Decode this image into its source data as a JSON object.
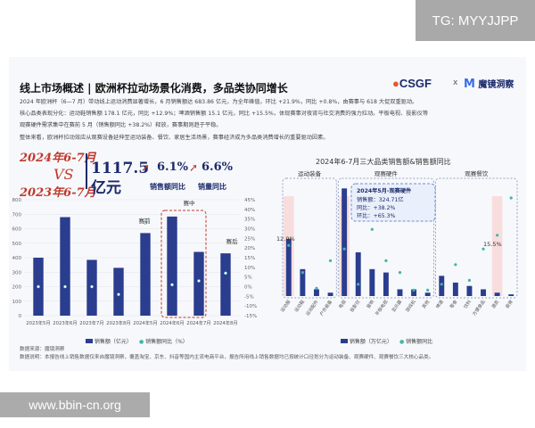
{
  "corner_tag": "TG: MYYJJPP",
  "watermark": "www.bbin-cn.org",
  "header": {
    "title": "线上市场概述 | 欧洲杯拉动场景化消费，多品类协同增长",
    "logo_csgf": "CSGF",
    "logo_x": "x",
    "logo_mj": "魔镜洞察"
  },
  "paragraphs": [
    "2024 年欧洲杯（6—7 月）带动线上运动消费显著增长，6 月销售额达 683.86 亿元，为全年峰值，环比 +21.9%，同比 +0.8%，由赛事与 618 大促双重驱动。",
    "核心品类表现分化：运动鞋销售额 178.1 亿元，同比 +12.9%；啤酒销售额 15.1 亿元，同比 +15.5%，体现赛事对夜宵与社交消费的强力拉动。平板电视、投影仪等",
    "观赛硬件需求集中在赛前 5 月（销售额同比 +38.2%）释放，赛事期则趋于平稳。",
    "整体来看，欧洲杯拉动效应从观赛设备延伸至运动装备、餐饮、家居生活场景，赛事经济成为多品类消费增长的重要驱动因素。"
  ],
  "highlight": {
    "date_2024": "2024年6-7月",
    "vs": "VS",
    "date_2023": "2023年6-7月",
    "amount_value": "1117.5",
    "amount_unit": "亿元",
    "sales_pct": "6.1%",
    "volume_pct": "6.6%",
    "sales_label": "销售额同比",
    "volume_label": "销量同比"
  },
  "left_legend": {
    "bar": "销售额（亿元）",
    "dot": "销售额同比（%）"
  },
  "right_legend": {
    "bar": "销售额（万亿元）",
    "dot": "销售额同比"
  },
  "footer": {
    "source": "数据来源：魔镜洞察",
    "note": "数据说明：本报告线上销售数据仅来自魔镜洞察，覆盖淘宝、京东、抖音等国内主流电商平台，报告所用线上销售数据均已按统计口径划分为运动装备、观赛硬件、观赛餐饮三大核心品类。"
  },
  "chart_data": [
    {
      "type": "bar",
      "title": "",
      "categories": [
        "2023年5月",
        "2023年6月",
        "2023年7月",
        "2023年8月",
        "2024年5月",
        "2024年6月",
        "2024年7月",
        "2024年8月"
      ],
      "series": [
        {
          "name": "销售额（亿元）",
          "values": [
            400,
            680,
            385,
            330,
            570,
            684,
            440,
            430
          ]
        },
        {
          "name": "销售额同比（%）",
          "values": [
            0,
            0,
            0,
            -4,
            33,
            1,
            3,
            7
          ]
        }
      ],
      "ylim": [
        0,
        800
      ],
      "yticks": [
        "800",
        "700",
        "600",
        "500",
        "400",
        "300",
        "200",
        "100",
        "0"
      ],
      "y2lim": [
        -15,
        45
      ],
      "y2ticks": [
        "45%",
        "40%",
        "35%",
        "30%",
        "25%",
        "20%",
        "15%",
        "10%",
        "5%",
        "0%",
        "-5%",
        "-10%",
        "-15%"
      ],
      "annotations": [
        "赛前",
        "赛中",
        "赛后"
      ]
    },
    {
      "type": "bar",
      "title": "2024年6-7月三大品类销售额&销售额同比",
      "groups": [
        "运动装备",
        "观赛硬件",
        "观赛餐饮"
      ],
      "categories": [
        "运动服",
        "运动鞋",
        "运动配件",
        "户外装备",
        "电视",
        "投影仪",
        "音响",
        "平板电视",
        "显示器",
        "游戏机",
        "其他",
        "啤酒",
        "零食",
        "饮料",
        "方便食品",
        "酒类",
        "夜宵"
      ],
      "series": [
        {
          "name": "销售额（万亿元）",
          "values": [
            0.17,
            0.08,
            0.02,
            0.01,
            0.32,
            0.13,
            0.08,
            0.07,
            0.02,
            0.02,
            0.01,
            0.06,
            0.04,
            0.03,
            0.02,
            0.01,
            0.005
          ]
        },
        {
          "name": "销售额同比",
          "values": [
            0.129,
            0.06,
            0.02,
            0.09,
            0.12,
            0.03,
            0.17,
            0.09,
            0.06,
            0.015,
            0.015,
            0.03,
            0.08,
            0.04,
            0.12,
            0.155,
            0.25
          ]
        }
      ],
      "tooltip": {
        "title": "2024年5月-观赛硬件",
        "lines": [
          "销售额：324.71亿",
          "同比：+38.2%",
          "环比：+65.3%"
        ]
      },
      "data_labels": [
        "12.9%",
        "15.5%"
      ]
    }
  ],
  "colors": {
    "bar": "#2a3d8f",
    "dot": "#3fb6a8",
    "highlight": "#f8d6d6",
    "accent": "#c0392b"
  }
}
